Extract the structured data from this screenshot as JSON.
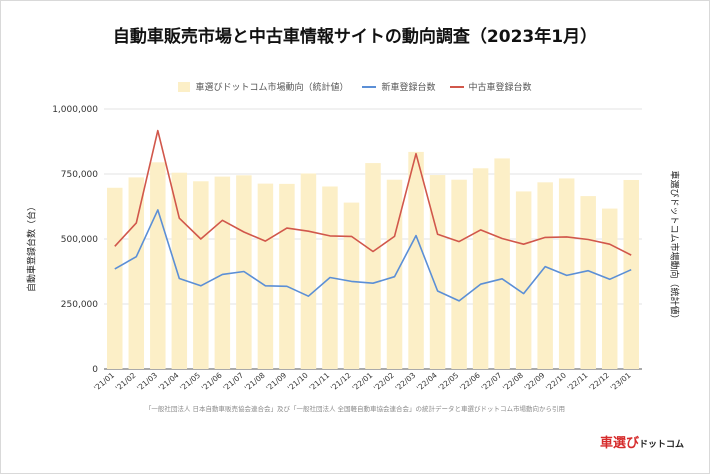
{
  "page": {
    "source_note": "「一般社団法人 日本自動車販売協会連合会」及び「一般社団法人 全国軽自動車協会連合会」の統計データと車選びドットコム市場動向から引用",
    "logo_main": "車選び",
    "logo_sub": "ドットコム"
  },
  "colors": {
    "bar": "#fcefc7",
    "new_car": "#5b8fd6",
    "used_car": "#d1574b",
    "grid": "#e3e3e3",
    "axis": "#555555"
  },
  "chart_data": {
    "type": "bar",
    "title": "自動車販売市場と中古車情報サイトの動向調査（2023年1月）",
    "xlabel": "",
    "ylabel": "自動車登録台数（台）",
    "y2label": "車選びドットコム市場動向（統計値）",
    "ylim": [
      0,
      1000000
    ],
    "yticks": [
      {
        "value": 0,
        "label": "0"
      },
      {
        "value": 250000,
        "label": "250,000"
      },
      {
        "value": 500000,
        "label": "500,000"
      },
      {
        "value": 750000,
        "label": "750,000"
      },
      {
        "value": 1000000,
        "label": "1,000,000"
      }
    ],
    "grid": true,
    "legend_position": "top",
    "categories": [
      "'21/01",
      "'21/02",
      "'21/03",
      "'21/04",
      "'21/05",
      "'21/06",
      "'21/07",
      "'21/08",
      "'21/09",
      "'21/10",
      "'21/11",
      "'21/12",
      "'22/01",
      "'22/02",
      "'22/03",
      "'22/04",
      "'22/05",
      "'22/06",
      "'22/07",
      "'22/08",
      "'22/09",
      "'22/10",
      "'22/11",
      "'22/12",
      "'23/01"
    ],
    "series": [
      {
        "name": "車選びドットコム市場動向（統計値）",
        "type": "bar",
        "values": [
          697000,
          737000,
          795000,
          755000,
          722000,
          740000,
          745000,
          713000,
          712000,
          752000,
          702000,
          640000,
          792000,
          728000,
          835000,
          746000,
          728000,
          772000,
          810000,
          683000,
          718000,
          733000,
          665000,
          617000,
          727000
        ]
      },
      {
        "name": "新車登録台数",
        "type": "line",
        "values": [
          385000,
          432000,
          612000,
          348000,
          320000,
          364000,
          375000,
          320000,
          318000,
          280000,
          352000,
          337000,
          330000,
          355000,
          513000,
          300000,
          262000,
          326000,
          347000,
          290000,
          394000,
          360000,
          378000,
          345000,
          382000
        ]
      },
      {
        "name": "中古車登録台数",
        "type": "line",
        "values": [
          472000,
          562000,
          917000,
          580000,
          500000,
          572000,
          527000,
          492000,
          542000,
          530000,
          512000,
          510000,
          452000,
          510000,
          828000,
          518000,
          490000,
          535000,
          502000,
          480000,
          506000,
          508000,
          498000,
          480000,
          438000
        ]
      }
    ]
  }
}
